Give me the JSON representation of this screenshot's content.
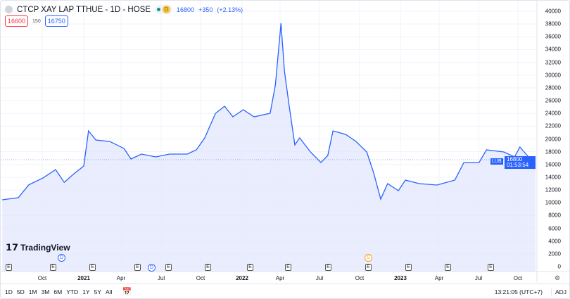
{
  "header": {
    "symbol_icon": "symbol-logo-icon",
    "title": "CTCP XAY LAP TTHUE - 1D - HOSE",
    "market_status": "D",
    "last": "16800",
    "change": "+350",
    "change_pct": "(+2.13%)"
  },
  "quote": {
    "bid": "16600",
    "spread": "150",
    "ask": "16750"
  },
  "price_tag": {
    "symbol": "LUB",
    "price": "16800",
    "countdown": "01:53:54"
  },
  "colors": {
    "line": "#2962ff",
    "fill": "#e3e9fd",
    "bid": "#f23645",
    "accent": "#2962ff",
    "dividend": "#2962ff",
    "split": "#f7a21b"
  },
  "y_axis": [
    "40000",
    "38000",
    "36000",
    "34000",
    "32000",
    "30000",
    "28000",
    "26000",
    "24000",
    "22000",
    "20000",
    "18000",
    "16000",
    "14000",
    "12000",
    "10000",
    "8000",
    "6000",
    "4000",
    "2000",
    "0"
  ],
  "x_axis": [
    {
      "label": "Oct",
      "bold": false
    },
    {
      "label": "2021",
      "bold": true
    },
    {
      "label": "Apr",
      "bold": false
    },
    {
      "label": "Jul",
      "bold": false
    },
    {
      "label": "Oct",
      "bold": false
    },
    {
      "label": "2022",
      "bold": true
    },
    {
      "label": "Apr",
      "bold": false
    },
    {
      "label": "Jul",
      "bold": false
    },
    {
      "label": "Oct",
      "bold": false
    },
    {
      "label": "2023",
      "bold": true
    },
    {
      "label": "Apr",
      "bold": false
    },
    {
      "label": "Jul",
      "bold": false
    },
    {
      "label": "Oct",
      "bold": false
    }
  ],
  "events": {
    "earnings": "E",
    "dividend": "D",
    "split": "S"
  },
  "logo": "TradingView",
  "toolbar": {
    "ranges": [
      "1D",
      "5D",
      "1M",
      "3M",
      "6M",
      "YTD",
      "1Y",
      "5Y",
      "All"
    ],
    "time": "13:21:05 (UTC+7)",
    "adj": "ADJ"
  },
  "chart_data": {
    "type": "area",
    "ylim": [
      0,
      40000
    ],
    "grid": true,
    "series": [
      {
        "x": [
          "2020-06-27",
          "2020-08-03",
          "2020-08-27",
          "2020-09-29",
          "2020-10-28",
          "2020-11-17",
          "2020-12-11",
          "2021-01-01",
          "2021-01-12",
          "2021-01-29",
          "2021-03-02",
          "2021-04-04",
          "2021-04-20",
          "2021-05-14",
          "2021-06-16",
          "2021-07-18",
          "2021-08-28",
          "2021-09-18",
          "2021-10-07",
          "2021-11-01",
          "2021-11-22",
          "2021-12-11",
          "2022-01-04",
          "2022-01-29",
          "2022-03-07",
          "2022-03-19",
          "2022-04-01",
          "2022-04-09",
          "2022-04-20",
          "2022-05-03",
          "2022-05-14",
          "2022-06-08",
          "2022-07-02",
          "2022-07-18",
          "2022-07-30",
          "2022-08-28",
          "2022-09-21",
          "2022-10-16",
          "2022-11-01",
          "2022-11-17",
          "2022-12-03",
          "2022-12-28",
          "2023-01-13",
          "2023-02-14",
          "2023-03-27",
          "2023-05-07",
          "2023-05-28",
          "2023-07-02",
          "2023-07-19",
          "2023-08-28",
          "2023-09-22",
          "2023-10-04",
          "2023-10-24",
          "2023-11-01",
          "2023-11-09"
        ],
        "y": [
          10470,
          10800,
          12800,
          13900,
          15200,
          13200,
          14650,
          15760,
          21270,
          19840,
          19600,
          18500,
          16860,
          17630,
          17190,
          17630,
          17630,
          18300,
          20170,
          24020,
          25120,
          23470,
          24570,
          23470,
          24020,
          28430,
          38130,
          30640,
          25120,
          19060,
          20170,
          17960,
          16310,
          17410,
          21270,
          20720,
          19610,
          17960,
          14650,
          10580,
          13000,
          11900,
          13550,
          13000,
          12780,
          13550,
          16310,
          16310,
          18290,
          17960,
          17190,
          18730,
          17190,
          16090,
          16800
        ]
      }
    ]
  }
}
